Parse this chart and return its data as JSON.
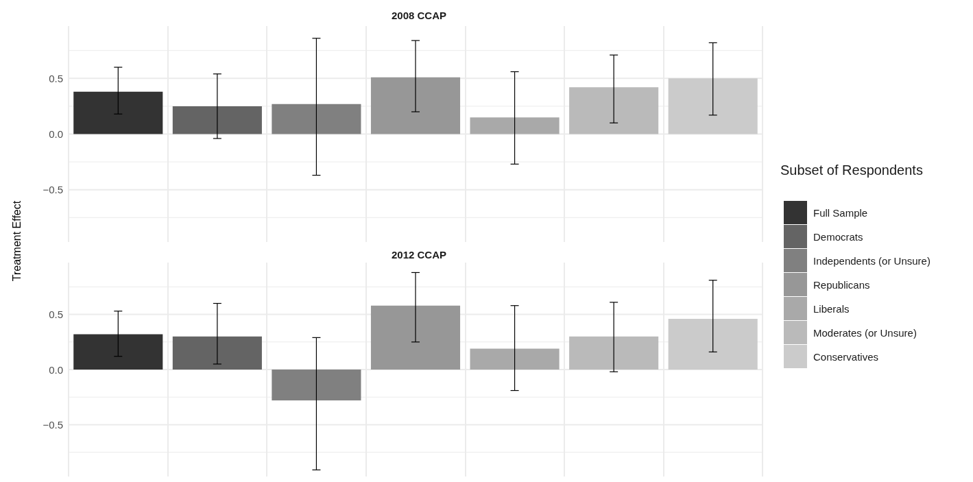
{
  "chart_data": [
    {
      "type": "bar",
      "title": "2008 CCAP",
      "ylabel": "Treatment Effect",
      "legend_title": "Subset of Respondents",
      "legend": "right",
      "grid": true,
      "tick_labels": "y",
      "categories": [
        null,
        null,
        null,
        null,
        null,
        null,
        null
      ],
      "ylim": [
        -0.97,
        0.97
      ],
      "yticks": [
        {
          "value": -0.75,
          "label": null
        },
        {
          "value": -0.5,
          "label": "−0.5"
        },
        {
          "value": -0.25,
          "label": null
        },
        {
          "value": 0,
          "label": "0.0"
        },
        {
          "value": 0.25,
          "label": null
        },
        {
          "value": 0.5,
          "label": "0.5"
        },
        {
          "value": 0.75,
          "label": null
        }
      ],
      "series": [
        {
          "name": "Full Sample",
          "color": "#333333",
          "values": [
            0.38,
            null,
            null,
            null,
            null,
            null,
            null
          ],
          "errors": [
            [
              0.18,
              0.6
            ],
            null,
            null,
            null,
            null,
            null,
            null
          ]
        },
        {
          "name": "Democrats",
          "color": "#646464",
          "values": [
            null,
            0.25,
            null,
            null,
            null,
            null,
            null
          ],
          "errors": [
            null,
            [
              -0.04,
              0.54
            ],
            null,
            null,
            null,
            null,
            null
          ]
        },
        {
          "name": "Independents (or Unsure)",
          "color": "#808080",
          "values": [
            null,
            null,
            0.27,
            null,
            null,
            null,
            null
          ],
          "errors": [
            null,
            null,
            [
              -0.37,
              0.86
            ],
            null,
            null,
            null,
            null
          ]
        },
        {
          "name": "Republicans",
          "color": "#979797",
          "values": [
            null,
            null,
            null,
            0.51,
            null,
            null,
            null
          ],
          "errors": [
            null,
            null,
            null,
            [
              0.2,
              0.84
            ],
            null,
            null,
            null
          ]
        },
        {
          "name": "Liberals",
          "color": "#a9a9a9",
          "values": [
            null,
            null,
            null,
            null,
            0.15,
            null,
            null
          ],
          "errors": [
            null,
            null,
            null,
            null,
            [
              -0.27,
              0.56
            ],
            null,
            null
          ]
        },
        {
          "name": "Moderates (or Unsure)",
          "color": "#bababa",
          "values": [
            null,
            null,
            null,
            null,
            null,
            0.42,
            null
          ],
          "errors": [
            null,
            null,
            null,
            null,
            null,
            [
              0.1,
              0.71
            ],
            null
          ]
        },
        {
          "name": "Conservatives",
          "color": "#cbcbcb",
          "values": [
            null,
            null,
            null,
            null,
            null,
            null,
            0.5
          ],
          "errors": [
            null,
            null,
            null,
            null,
            null,
            null,
            [
              0.17,
              0.82
            ]
          ]
        }
      ]
    },
    {
      "type": "bar",
      "title": "2012 CCAP",
      "grid": true,
      "tick_labels": "y",
      "categories": [
        null,
        null,
        null,
        null,
        null,
        null,
        null
      ],
      "ylim": [
        -0.97,
        0.97
      ],
      "yticks": [
        {
          "value": -0.75,
          "label": null
        },
        {
          "value": -0.5,
          "label": "−0.5"
        },
        {
          "value": -0.25,
          "label": null
        },
        {
          "value": 0,
          "label": "0.0"
        },
        {
          "value": 0.25,
          "label": null
        },
        {
          "value": 0.5,
          "label": "0.5"
        },
        {
          "value": 0.75,
          "label": null
        }
      ],
      "series": [
        {
          "color": "#333333",
          "values": [
            0.32,
            null,
            null,
            null,
            null,
            null,
            null
          ],
          "errors": [
            [
              0.12,
              0.53
            ],
            null,
            null,
            null,
            null,
            null,
            null
          ]
        },
        {
          "color": "#646464",
          "values": [
            null,
            0.3,
            null,
            null,
            null,
            null,
            null
          ],
          "errors": [
            null,
            [
              0.05,
              0.6
            ],
            null,
            null,
            null,
            null,
            null
          ]
        },
        {
          "color": "#808080",
          "values": [
            null,
            null,
            -0.28,
            null,
            null,
            null,
            null
          ],
          "errors": [
            null,
            null,
            [
              -0.91,
              0.29
            ],
            null,
            null,
            null,
            null
          ]
        },
        {
          "color": "#979797",
          "values": [
            null,
            null,
            null,
            0.58,
            null,
            null,
            null
          ],
          "errors": [
            null,
            null,
            null,
            [
              0.25,
              0.88
            ],
            null,
            null,
            null
          ]
        },
        {
          "color": "#a9a9a9",
          "values": [
            null,
            null,
            null,
            null,
            0.19,
            null,
            null
          ],
          "errors": [
            null,
            null,
            null,
            null,
            [
              -0.19,
              0.58
            ],
            null,
            null
          ]
        },
        {
          "color": "#bababa",
          "values": [
            null,
            null,
            null,
            null,
            null,
            0.3,
            null
          ],
          "errors": [
            null,
            null,
            null,
            null,
            null,
            [
              -0.02,
              0.61
            ],
            null
          ]
        },
        {
          "color": "#cbcbcb",
          "values": [
            null,
            null,
            null,
            null,
            null,
            null,
            0.46
          ],
          "errors": [
            null,
            null,
            null,
            null,
            null,
            null,
            [
              0.16,
              0.81
            ]
          ]
        }
      ]
    }
  ]
}
